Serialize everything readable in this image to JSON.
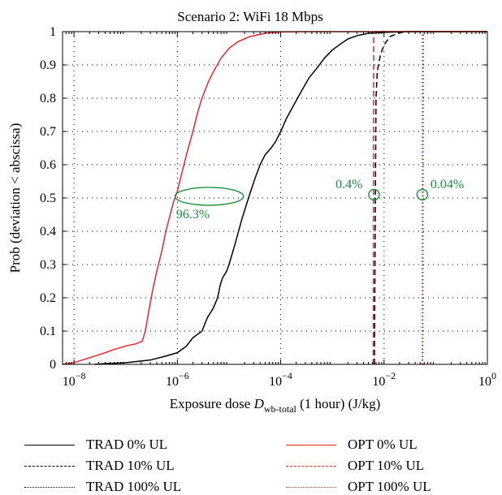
{
  "colors": {
    "trad": "#000000",
    "opt": "#e8262b",
    "annotation": "#1e8c3e",
    "grid": "#000000"
  },
  "chart_data": {
    "type": "line",
    "title": "Scenario 2: WiFi 18 Mbps",
    "xlabel_prefix": "Exposure dose ",
    "xlabel_symbol": "D",
    "xlabel_sub": "wb-total",
    "xlabel_suffix": " (1 hour) (J/kg)",
    "ylabel": "Prob (deviation < abscissa)",
    "x_scale": "log",
    "xlim": [
      6e-09,
      1
    ],
    "ylim": [
      0,
      1
    ],
    "grid": "dotted",
    "x_ticks": [
      {
        "value": 1e-08,
        "base": "10",
        "exp": "−8"
      },
      {
        "value": 1e-06,
        "base": "10",
        "exp": "−6"
      },
      {
        "value": 0.0001,
        "base": "10",
        "exp": "−4"
      },
      {
        "value": 0.01,
        "base": "10",
        "exp": "−2"
      },
      {
        "value": 1,
        "base": "10",
        "exp": "0"
      }
    ],
    "y_ticks": [
      "0",
      "0.1",
      "0.2",
      "0.3",
      "0.4",
      "0.5",
      "0.6",
      "0.7",
      "0.8",
      "0.9",
      "1"
    ],
    "legend_position": "bottom",
    "series": [
      {
        "name": "TRAD 0% UL",
        "color": "#000000",
        "style": "solid",
        "points": [
          [
            2.5e-08,
            0
          ],
          [
            4e-08,
            0.002
          ],
          [
            1e-07,
            0.005
          ],
          [
            3e-07,
            0.013
          ],
          [
            6e-07,
            0.025
          ],
          [
            1e-06,
            0.035
          ],
          [
            1.5e-06,
            0.055
          ],
          [
            2e-06,
            0.08
          ],
          [
            3e-06,
            0.1
          ],
          [
            3.8e-06,
            0.14
          ],
          [
            5e-06,
            0.17
          ],
          [
            6e-06,
            0.2
          ],
          [
            6.8e-06,
            0.24
          ],
          [
            7.5e-06,
            0.26
          ],
          [
            9e-06,
            0.28
          ],
          [
            1e-05,
            0.3
          ],
          [
            1.3e-05,
            0.36
          ],
          [
            1.8e-05,
            0.44
          ],
          [
            2.5e-05,
            0.51
          ],
          [
            3.2e-05,
            0.56
          ],
          [
            4e-05,
            0.6
          ],
          [
            5e-05,
            0.63
          ],
          [
            6.5e-05,
            0.65
          ],
          [
            8e-05,
            0.67
          ],
          [
            0.0001,
            0.7
          ],
          [
            0.00013,
            0.74
          ],
          [
            0.00018,
            0.78
          ],
          [
            0.00025,
            0.82
          ],
          [
            0.00035,
            0.86
          ],
          [
            0.0005,
            0.89
          ],
          [
            0.0007,
            0.92
          ],
          [
            0.001,
            0.945
          ],
          [
            0.0015,
            0.965
          ],
          [
            0.002,
            0.978
          ],
          [
            0.003,
            0.988
          ],
          [
            0.005,
            0.995
          ],
          [
            0.01,
            0.998
          ],
          [
            0.03,
            1
          ],
          [
            1,
            1
          ]
        ]
      },
      {
        "name": "TRAD 10% UL",
        "color": "#000000",
        "style": "dashed",
        "points": [
          [
            0.0065,
            0
          ],
          [
            0.0068,
            0.5
          ],
          [
            0.007,
            0.8
          ],
          [
            0.0074,
            0.88
          ],
          [
            0.0085,
            0.93
          ],
          [
            0.01,
            0.96
          ],
          [
            0.013,
            0.985
          ],
          [
            0.02,
            0.997
          ],
          [
            0.03,
            1
          ],
          [
            1,
            1
          ]
        ]
      },
      {
        "name": "TRAD 100% UL",
        "color": "#000000",
        "style": "dotted",
        "points": [
          [
            0.056,
            0
          ],
          [
            0.057,
            0.99
          ],
          [
            0.06,
            1
          ],
          [
            1,
            1
          ]
        ]
      },
      {
        "name": "OPT 0% UL",
        "color": "#e8262b",
        "style": "solid",
        "points": [
          [
            6e-09,
            0
          ],
          [
            1e-08,
            0.005
          ],
          [
            2e-08,
            0.02
          ],
          [
            4e-08,
            0.035
          ],
          [
            6e-08,
            0.045
          ],
          [
            1e-07,
            0.055
          ],
          [
            1.6e-07,
            0.062
          ],
          [
            2.1e-07,
            0.07
          ],
          [
            2.4e-07,
            0.1
          ],
          [
            2.8e-07,
            0.16
          ],
          [
            3.3e-07,
            0.22
          ],
          [
            4e-07,
            0.28
          ],
          [
            5e-07,
            0.34
          ],
          [
            6e-07,
            0.4
          ],
          [
            7e-07,
            0.44
          ],
          [
            8.5e-07,
            0.49
          ],
          [
            1e-06,
            0.52
          ],
          [
            1.2e-06,
            0.57
          ],
          [
            1.5e-06,
            0.63
          ],
          [
            2e-06,
            0.7
          ],
          [
            2.5e-06,
            0.76
          ],
          [
            3e-06,
            0.8
          ],
          [
            4e-06,
            0.85
          ],
          [
            5e-06,
            0.88
          ],
          [
            7e-06,
            0.92
          ],
          [
            1e-05,
            0.95
          ],
          [
            1.5e-05,
            0.97
          ],
          [
            2.5e-05,
            0.985
          ],
          [
            5e-05,
            0.995
          ],
          [
            0.0001,
            0.999
          ],
          [
            0.0003,
            1
          ],
          [
            1,
            1
          ]
        ]
      },
      {
        "name": "OPT 10% UL",
        "color": "#e8262b",
        "style": "dashed",
        "points": [
          [
            0.0062,
            0
          ],
          [
            0.0063,
            0.99
          ],
          [
            0.0066,
            1
          ],
          [
            1,
            1
          ]
        ]
      },
      {
        "name": "OPT 100% UL",
        "color": "#e8262b",
        "style": "dotted",
        "points": [
          [
            0.055,
            0
          ],
          [
            0.0555,
            0.995
          ],
          [
            0.058,
            1
          ],
          [
            1,
            1
          ]
        ]
      }
    ],
    "annotations": [
      {
        "label": "96.3%",
        "shape": "ellipse",
        "x_range": [
          9e-07,
          1.9e-05
        ],
        "y": 0.505
      },
      {
        "label": "0.4%",
        "shape": "circle",
        "x": 0.0064,
        "y": 0.51
      },
      {
        "label": "0.04%",
        "shape": "circle",
        "x": 0.055,
        "y": 0.51
      }
    ]
  }
}
